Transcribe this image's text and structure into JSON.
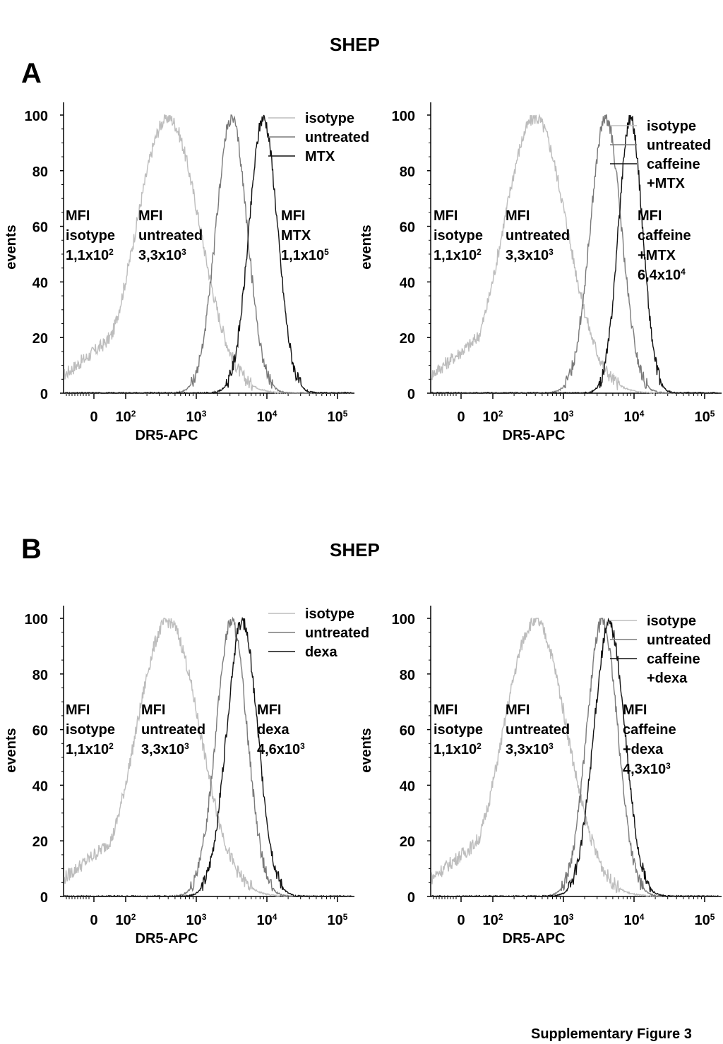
{
  "section_a": {
    "letter": "A",
    "title": "SHEP"
  },
  "section_b": {
    "letter": "B",
    "title": "SHEP"
  },
  "footer": "Supplementary Figure 3",
  "chart_data": [
    {
      "id": "A-left",
      "type": "histogram",
      "xlabel": "DR5-APC",
      "ylabel": "events",
      "ylim": [
        0,
        100
      ],
      "yticks": [
        "0",
        "20",
        "40",
        "60",
        "80",
        "100"
      ],
      "xticks": [
        "0",
        "10",
        "10",
        "10",
        "10"
      ],
      "xtick_exponents": [
        "",
        "2",
        "3",
        "4",
        "5"
      ],
      "x_scale": "biexponential",
      "series": [
        {
          "name": "isotype",
          "color": "#bdbdbd",
          "peak_log10": 2.6,
          "peak": 99,
          "width_log10": 0.45
        },
        {
          "name": "untreated",
          "color": "#7a7a7a",
          "peak_log10": 3.5,
          "peak": 99,
          "width_log10": 0.22
        },
        {
          "name": "MTX",
          "color": "#111111",
          "peak_log10": 3.95,
          "peak": 99,
          "width_log10": 0.2
        }
      ],
      "annotations": [
        {
          "lines": [
            "MFI",
            "isotype",
            "1,1x10"
          ],
          "exp": "2"
        },
        {
          "lines": [
            "MFI",
            "untreated",
            "3,3x10"
          ],
          "exp": "3"
        },
        {
          "lines": [
            "MFI",
            "MTX",
            "1,1x10"
          ],
          "exp": "5"
        }
      ]
    },
    {
      "id": "A-right",
      "type": "histogram",
      "xlabel": "DR5-APC",
      "ylabel": "events",
      "ylim": [
        0,
        100
      ],
      "yticks": [
        "0",
        "20",
        "40",
        "60",
        "80",
        "100"
      ],
      "xticks": [
        "0",
        "10",
        "10",
        "10",
        "10"
      ],
      "xtick_exponents": [
        "",
        "2",
        "3",
        "4",
        "5"
      ],
      "x_scale": "biexponential",
      "series": [
        {
          "name": "isotype",
          "color": "#bdbdbd",
          "peak_log10": 2.6,
          "peak": 99,
          "width_log10": 0.45
        },
        {
          "name": "untreated",
          "color": "#7a7a7a",
          "peak_log10": 3.6,
          "peak": 99,
          "width_log10": 0.22
        },
        {
          "name": "caffeine +MTX",
          "color": "#111111",
          "peak_log10": 3.95,
          "peak": 99,
          "width_log10": 0.17
        }
      ],
      "annotations": [
        {
          "lines": [
            "MFI",
            "isotype",
            "1,1x10"
          ],
          "exp": "2"
        },
        {
          "lines": [
            "MFI",
            "untreated",
            "3,3x10"
          ],
          "exp": "3"
        },
        {
          "lines": [
            "MFI",
            "caffeine",
            "+MTX",
            "6,4x10"
          ],
          "exp": "4"
        }
      ]
    },
    {
      "id": "B-left",
      "type": "histogram",
      "xlabel": "DR5-APC",
      "ylabel": "events",
      "ylim": [
        0,
        100
      ],
      "yticks": [
        "0",
        "20",
        "40",
        "60",
        "80",
        "100"
      ],
      "xticks": [
        "0",
        "10",
        "10",
        "10",
        "10"
      ],
      "xtick_exponents": [
        "",
        "2",
        "3",
        "4",
        "5"
      ],
      "x_scale": "biexponential",
      "series": [
        {
          "name": "isotype",
          "color": "#bdbdbd",
          "peak_log10": 2.6,
          "peak": 99,
          "width_log10": 0.45
        },
        {
          "name": "untreated",
          "color": "#7a7a7a",
          "peak_log10": 3.5,
          "peak": 99,
          "width_log10": 0.22
        },
        {
          "name": "dexa",
          "color": "#111111",
          "peak_log10": 3.65,
          "peak": 99,
          "width_log10": 0.22
        }
      ],
      "annotations": [
        {
          "lines": [
            "MFI",
            "isotype",
            "1,1x10"
          ],
          "exp": "2"
        },
        {
          "lines": [
            "MFI",
            "untreated",
            "3,3x10"
          ],
          "exp": "3"
        },
        {
          "lines": [
            "MFI",
            "dexa",
            "4,6x10"
          ],
          "exp": "3"
        }
      ]
    },
    {
      "id": "B-right",
      "type": "histogram",
      "xlabel": "DR5-APC",
      "ylabel": "events",
      "ylim": [
        0,
        100
      ],
      "yticks": [
        "0",
        "20",
        "40",
        "60",
        "80",
        "100"
      ],
      "xticks": [
        "0",
        "10",
        "10",
        "10",
        "10"
      ],
      "xtick_exponents": [
        "",
        "2",
        "3",
        "4",
        "5"
      ],
      "x_scale": "biexponential",
      "series": [
        {
          "name": "isotype",
          "color": "#bdbdbd",
          "peak_log10": 2.6,
          "peak": 99,
          "width_log10": 0.45
        },
        {
          "name": "untreated",
          "color": "#7a7a7a",
          "peak_log10": 3.55,
          "peak": 99,
          "width_log10": 0.22
        },
        {
          "name": "caffeine +dexa",
          "color": "#111111",
          "peak_log10": 3.65,
          "peak": 98,
          "width_log10": 0.22
        }
      ],
      "annotations": [
        {
          "lines": [
            "MFI",
            "isotype",
            "1,1x10"
          ],
          "exp": "2"
        },
        {
          "lines": [
            "MFI",
            "untreated",
            "3,3x10"
          ],
          "exp": "3"
        },
        {
          "lines": [
            "MFI",
            "caffeine",
            "+dexa",
            "4,3x10"
          ],
          "exp": "3"
        }
      ]
    }
  ]
}
